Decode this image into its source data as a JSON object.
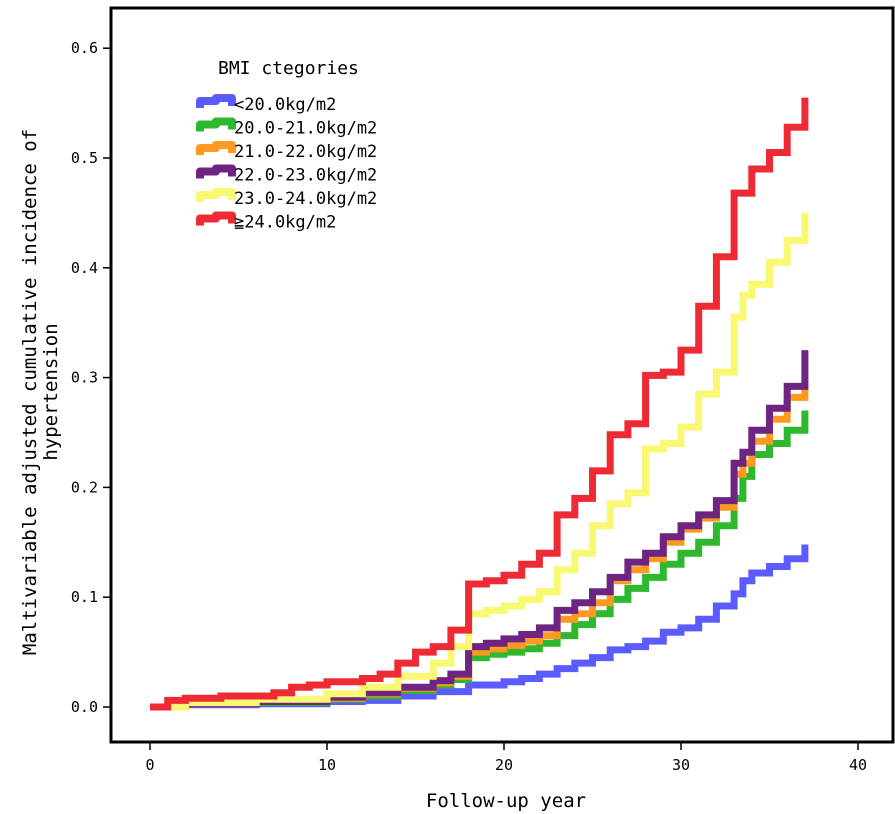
{
  "chart_data": {
    "type": "line",
    "step": true,
    "title": "",
    "xlabel": "Follow-up year",
    "ylabel_lines": [
      "Maltivariable adjusted cumulative incidence of",
      "hypertension"
    ],
    "xlim": [
      0,
      40
    ],
    "ylim": [
      0,
      0.6
    ],
    "xticks": [
      0,
      10,
      20,
      30,
      40
    ],
    "yticks": [
      0.0,
      0.1,
      0.2,
      0.3,
      0.4,
      0.5,
      0.6
    ],
    "xtick_labels": [
      "0",
      "10",
      "20",
      "30",
      "40"
    ],
    "ytick_labels": [
      "0.0",
      "0.1",
      "0.2",
      "0.3",
      "0.4",
      "0.5",
      "0.6"
    ],
    "grid": false,
    "legend": {
      "title": "BMI ctegories",
      "placement": "top-left"
    },
    "series": [
      {
        "name": "<20.0kg/m2",
        "color": "#5b5bff",
        "points": [
          [
            0,
            0
          ],
          [
            2,
            0.002
          ],
          [
            6,
            0.003
          ],
          [
            10,
            0.005
          ],
          [
            12,
            0.006
          ],
          [
            14,
            0.01
          ],
          [
            16,
            0.014
          ],
          [
            18,
            0.02
          ],
          [
            20,
            0.023
          ],
          [
            21,
            0.026
          ],
          [
            22,
            0.03
          ],
          [
            23,
            0.035
          ],
          [
            24,
            0.04
          ],
          [
            25,
            0.045
          ],
          [
            26,
            0.052
          ],
          [
            27,
            0.055
          ],
          [
            28,
            0.06
          ],
          [
            29,
            0.068
          ],
          [
            30,
            0.072
          ],
          [
            31,
            0.08
          ],
          [
            32,
            0.092
          ],
          [
            33,
            0.103
          ],
          [
            33.5,
            0.115
          ],
          [
            34,
            0.122
          ],
          [
            35,
            0.128
          ],
          [
            36,
            0.135
          ],
          [
            37,
            0.142
          ],
          [
            37,
            0.148
          ]
        ]
      },
      {
        "name": "20.0-21.0kg/m2",
        "color": "#2eb82e",
        "points": [
          [
            0,
            0
          ],
          [
            2,
            0.003
          ],
          [
            6,
            0.004
          ],
          [
            10,
            0.007
          ],
          [
            12,
            0.01
          ],
          [
            14,
            0.015
          ],
          [
            16,
            0.02
          ],
          [
            17,
            0.025
          ],
          [
            18,
            0.045
          ],
          [
            19,
            0.048
          ],
          [
            20,
            0.05
          ],
          [
            21,
            0.053
          ],
          [
            22,
            0.058
          ],
          [
            23,
            0.065
          ],
          [
            24,
            0.075
          ],
          [
            25,
            0.085
          ],
          [
            26,
            0.098
          ],
          [
            27,
            0.108
          ],
          [
            28,
            0.118
          ],
          [
            29,
            0.13
          ],
          [
            30,
            0.14
          ],
          [
            31,
            0.15
          ],
          [
            32,
            0.165
          ],
          [
            33,
            0.19
          ],
          [
            33.5,
            0.21
          ],
          [
            34,
            0.23
          ],
          [
            35,
            0.24
          ],
          [
            36,
            0.252
          ],
          [
            37,
            0.26
          ],
          [
            37,
            0.27
          ]
        ]
      },
      {
        "name": "21.0-22.0kg/m2",
        "color": "#ff9922",
        "points": [
          [
            0,
            0
          ],
          [
            2,
            0.003
          ],
          [
            6,
            0.005
          ],
          [
            10,
            0.008
          ],
          [
            12,
            0.012
          ],
          [
            14,
            0.017
          ],
          [
            16,
            0.022
          ],
          [
            17,
            0.028
          ],
          [
            18,
            0.05
          ],
          [
            19,
            0.053
          ],
          [
            20,
            0.056
          ],
          [
            21,
            0.06
          ],
          [
            22,
            0.065
          ],
          [
            23,
            0.08
          ],
          [
            24,
            0.085
          ],
          [
            25,
            0.095
          ],
          [
            26,
            0.115
          ],
          [
            27,
            0.125
          ],
          [
            28,
            0.135
          ],
          [
            29,
            0.15
          ],
          [
            30,
            0.162
          ],
          [
            31,
            0.172
          ],
          [
            32,
            0.182
          ],
          [
            33,
            0.212
          ],
          [
            33.5,
            0.222
          ],
          [
            34,
            0.242
          ],
          [
            35,
            0.262
          ],
          [
            36,
            0.282
          ],
          [
            37,
            0.292
          ],
          [
            37,
            0.3
          ]
        ]
      },
      {
        "name": "22.0-23.0kg/m2",
        "color": "#6e2582",
        "points": [
          [
            0,
            0
          ],
          [
            2,
            0.003
          ],
          [
            6,
            0.005
          ],
          [
            10,
            0.009
          ],
          [
            12,
            0.013
          ],
          [
            14,
            0.018
          ],
          [
            16,
            0.024
          ],
          [
            17,
            0.03
          ],
          [
            18,
            0.055
          ],
          [
            19,
            0.058
          ],
          [
            20,
            0.062
          ],
          [
            21,
            0.066
          ],
          [
            22,
            0.072
          ],
          [
            23,
            0.088
          ],
          [
            24,
            0.095
          ],
          [
            25,
            0.105
          ],
          [
            26,
            0.118
          ],
          [
            27,
            0.132
          ],
          [
            28,
            0.14
          ],
          [
            29,
            0.155
          ],
          [
            30,
            0.165
          ],
          [
            31,
            0.175
          ],
          [
            32,
            0.188
          ],
          [
            33,
            0.222
          ],
          [
            33.5,
            0.232
          ],
          [
            34,
            0.252
          ],
          [
            35,
            0.272
          ],
          [
            36,
            0.292
          ],
          [
            37,
            0.302
          ],
          [
            37,
            0.325
          ]
        ]
      },
      {
        "name": "23.0-24.0kg/m2",
        "color": "#f8f872",
        "points": [
          [
            0,
            0
          ],
          [
            2,
            0.004
          ],
          [
            6,
            0.007
          ],
          [
            10,
            0.012
          ],
          [
            12,
            0.018
          ],
          [
            14,
            0.028
          ],
          [
            16,
            0.04
          ],
          [
            17,
            0.055
          ],
          [
            18,
            0.085
          ],
          [
            19,
            0.088
          ],
          [
            20,
            0.092
          ],
          [
            21,
            0.098
          ],
          [
            22,
            0.105
          ],
          [
            23,
            0.125
          ],
          [
            24,
            0.14
          ],
          [
            25,
            0.165
          ],
          [
            26,
            0.185
          ],
          [
            27,
            0.195
          ],
          [
            28,
            0.235
          ],
          [
            29,
            0.24
          ],
          [
            30,
            0.255
          ],
          [
            31,
            0.285
          ],
          [
            32,
            0.305
          ],
          [
            33,
            0.355
          ],
          [
            33.5,
            0.375
          ],
          [
            34,
            0.385
          ],
          [
            35,
            0.405
          ],
          [
            36,
            0.425
          ],
          [
            37,
            0.43
          ],
          [
            37,
            0.45
          ]
        ]
      },
      {
        "name": "≧24.0kg/m2",
        "color": "#ee2a35",
        "points": [
          [
            0,
            0
          ],
          [
            1,
            0.006
          ],
          [
            2,
            0.008
          ],
          [
            4,
            0.01
          ],
          [
            7,
            0.013
          ],
          [
            8,
            0.018
          ],
          [
            9,
            0.02
          ],
          [
            10,
            0.023
          ],
          [
            12,
            0.026
          ],
          [
            13,
            0.03
          ],
          [
            14,
            0.04
          ],
          [
            15,
            0.05
          ],
          [
            16,
            0.055
          ],
          [
            17,
            0.07
          ],
          [
            18,
            0.112
          ],
          [
            19,
            0.115
          ],
          [
            20,
            0.12
          ],
          [
            21,
            0.13
          ],
          [
            22,
            0.14
          ],
          [
            23,
            0.175
          ],
          [
            24,
            0.19
          ],
          [
            25,
            0.215
          ],
          [
            26,
            0.248
          ],
          [
            27,
            0.258
          ],
          [
            28,
            0.302
          ],
          [
            29,
            0.305
          ],
          [
            30,
            0.325
          ],
          [
            31,
            0.365
          ],
          [
            32,
            0.41
          ],
          [
            33,
            0.468
          ],
          [
            34,
            0.49
          ],
          [
            35,
            0.505
          ],
          [
            36,
            0.528
          ],
          [
            37,
            0.53
          ],
          [
            37,
            0.555
          ]
        ]
      }
    ]
  }
}
